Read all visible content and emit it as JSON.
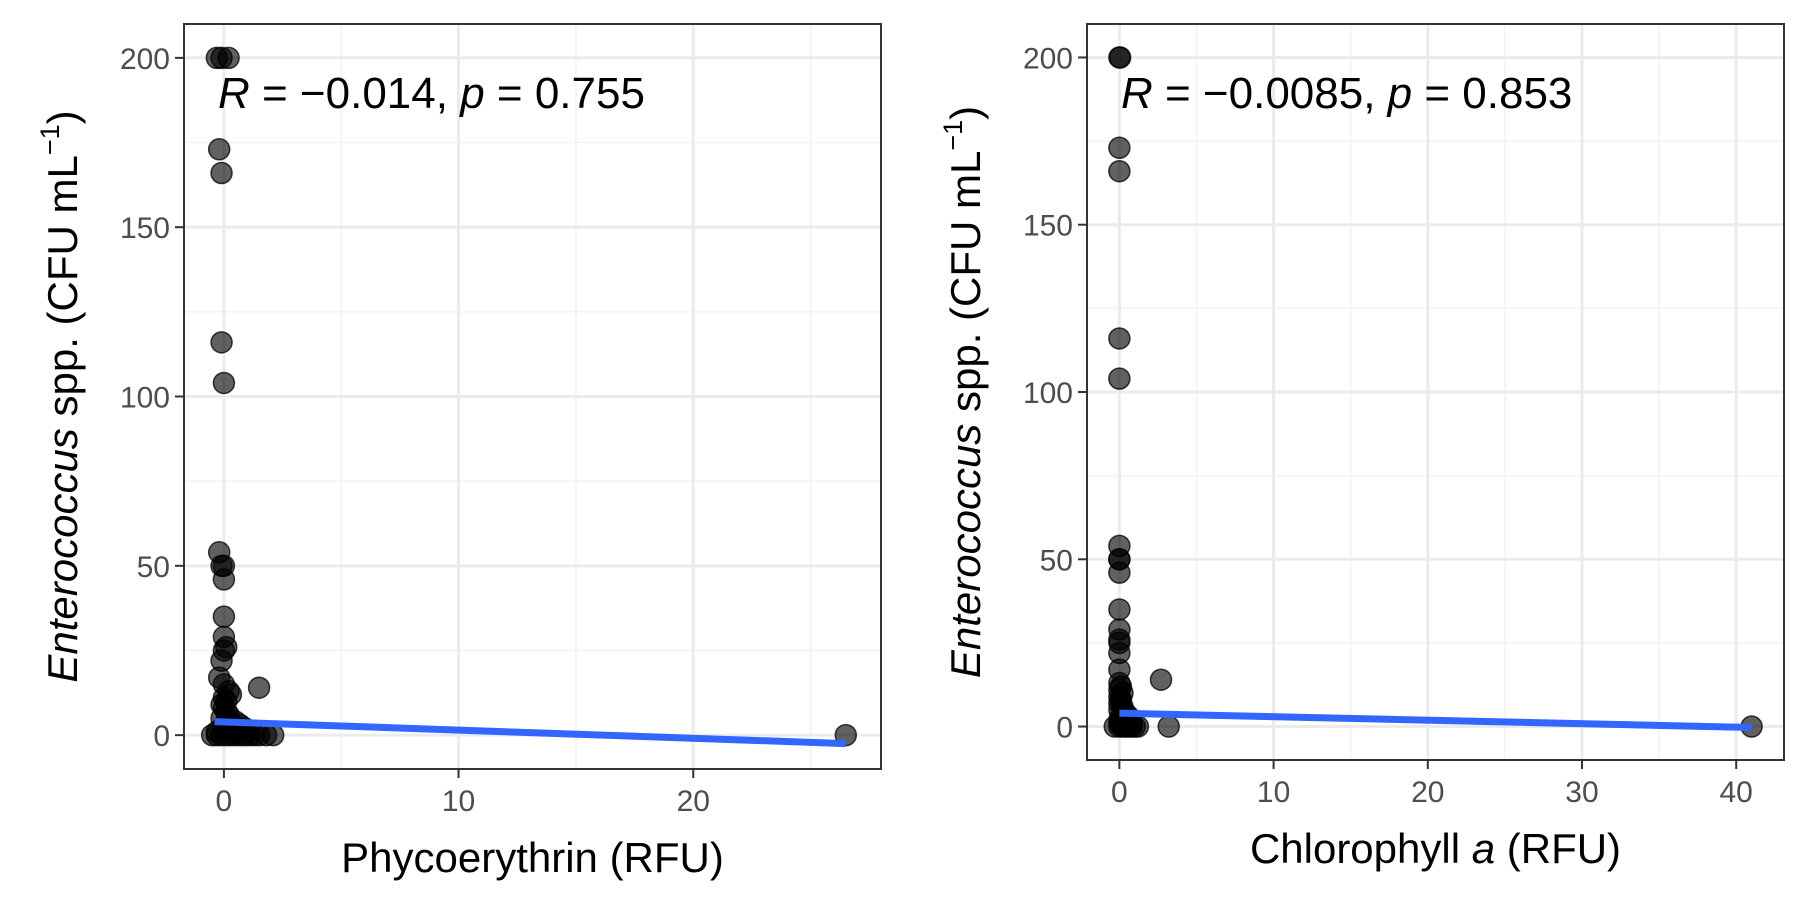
{
  "chart_data": [
    {
      "type": "scatter",
      "xlabel": "Phycoerythrin (RFU)",
      "ylabel": {
        "italic": "Enterococcus",
        "rest": " spp. (CFU mL",
        "sup": "−1",
        "close": ")"
      },
      "annotation": {
        "R_sym": "R",
        "R_val": " = −0.014, ",
        "p_sym": "p",
        "p_val": " = 0.755"
      },
      "xlim": [
        -1.7,
        28.0
      ],
      "ylim": [
        -10,
        210
      ],
      "xticks": [
        0,
        10,
        20
      ],
      "xtick_labels": [
        "0",
        "10",
        "20"
      ],
      "xminor": [
        5,
        15,
        25
      ],
      "yticks": [
        0,
        50,
        100,
        150,
        200
      ],
      "ytick_labels": [
        "0",
        "50",
        "100",
        "150",
        "200"
      ],
      "yminor": [
        25,
        75,
        125,
        175
      ],
      "points": [
        [
          -0.3,
          200
        ],
        [
          0.2,
          200
        ],
        [
          -0.1,
          200
        ],
        [
          -0.2,
          173
        ],
        [
          -0.1,
          166
        ],
        [
          -0.1,
          116
        ],
        [
          0.0,
          104
        ],
        [
          -0.2,
          54
        ],
        [
          -0.1,
          50
        ],
        [
          0.0,
          50
        ],
        [
          0.0,
          46
        ],
        [
          0.0,
          35
        ],
        [
          0.0,
          29
        ],
        [
          0.1,
          26
        ],
        [
          0.0,
          25
        ],
        [
          -0.1,
          22
        ],
        [
          -0.2,
          17
        ],
        [
          0.0,
          15
        ],
        [
          1.5,
          14
        ],
        [
          0.2,
          13
        ],
        [
          0.3,
          12
        ],
        [
          0.0,
          11
        ],
        [
          0.1,
          10
        ],
        [
          -0.1,
          9
        ],
        [
          0.0,
          8
        ],
        [
          0.1,
          7
        ],
        [
          0.2,
          6
        ],
        [
          -0.1,
          5
        ],
        [
          0.3,
          4
        ],
        [
          0.5,
          4
        ],
        [
          0.0,
          3
        ],
        [
          0.2,
          3
        ],
        [
          0.7,
          3
        ],
        [
          0.1,
          2
        ],
        [
          0.4,
          2
        ],
        [
          0.9,
          2
        ],
        [
          -0.3,
          1
        ],
        [
          0.3,
          1
        ],
        [
          0.6,
          1
        ],
        [
          1.0,
          1
        ],
        [
          -0.5,
          0
        ],
        [
          -0.3,
          0
        ],
        [
          -0.1,
          0
        ],
        [
          0.1,
          0
        ],
        [
          0.3,
          0
        ],
        [
          0.5,
          0
        ],
        [
          0.7,
          0
        ],
        [
          0.9,
          0
        ],
        [
          1.1,
          0
        ],
        [
          1.3,
          0
        ],
        [
          1.5,
          0
        ],
        [
          1.8,
          0
        ],
        [
          2.1,
          0
        ],
        [
          26.5,
          0
        ]
      ],
      "fit": {
        "x": [
          -0.4,
          26.5
        ],
        "y": [
          4.0,
          -2.5
        ]
      },
      "point_color": "#000000",
      "point_opacity": 0.62,
      "fit_color": "#3366ff"
    },
    {
      "type": "scatter",
      "xlabel": {
        "pre": "Chlorophyll ",
        "italic": "a",
        "post": " (RFU)"
      },
      "ylabel": {
        "italic": "Enterococcus",
        "rest": " spp. (CFU mL",
        "sup": "−1",
        "close": ")"
      },
      "annotation": {
        "R_sym": "R",
        "R_val": " = −0.0085, ",
        "p_sym": "p",
        "p_val": " = 0.853"
      },
      "xlim": [
        -2.1,
        43.1
      ],
      "ylim": [
        -10,
        210
      ],
      "xticks": [
        0,
        10,
        20,
        30,
        40
      ],
      "xtick_labels": [
        "0",
        "10",
        "20",
        "30",
        "40"
      ],
      "xminor": [
        5,
        15,
        25,
        35
      ],
      "yticks": [
        0,
        50,
        100,
        150,
        200
      ],
      "ytick_labels": [
        "0",
        "50",
        "100",
        "150",
        "200"
      ],
      "yminor": [
        25,
        75,
        125,
        175
      ],
      "points": [
        [
          0.0,
          200
        ],
        [
          0.05,
          200
        ],
        [
          0.0,
          173
        ],
        [
          0.0,
          166
        ],
        [
          0.0,
          116
        ],
        [
          0.0,
          104
        ],
        [
          0.0,
          54
        ],
        [
          0.0,
          50
        ],
        [
          0.0,
          50
        ],
        [
          0.0,
          46
        ],
        [
          0.0,
          35
        ],
        [
          0.0,
          29
        ],
        [
          0.0,
          26
        ],
        [
          0.0,
          25
        ],
        [
          0.0,
          22
        ],
        [
          0.0,
          17
        ],
        [
          2.7,
          14
        ],
        [
          0.0,
          13
        ],
        [
          0.1,
          12
        ],
        [
          0.0,
          11
        ],
        [
          0.2,
          10
        ],
        [
          0.0,
          9
        ],
        [
          0.1,
          8
        ],
        [
          0.0,
          7
        ],
        [
          0.2,
          6
        ],
        [
          0.0,
          5
        ],
        [
          0.4,
          4
        ],
        [
          0.1,
          3
        ],
        [
          0.6,
          3
        ],
        [
          0.0,
          2
        ],
        [
          0.3,
          2
        ],
        [
          0.8,
          1
        ],
        [
          0.0,
          1
        ],
        [
          -0.3,
          0
        ],
        [
          0.0,
          0
        ],
        [
          0.2,
          0
        ],
        [
          0.4,
          0
        ],
        [
          0.6,
          0
        ],
        [
          0.8,
          0
        ],
        [
          1.0,
          0
        ],
        [
          1.2,
          0
        ],
        [
          3.2,
          0
        ],
        [
          41.0,
          0
        ]
      ],
      "fit": {
        "x": [
          0.0,
          41.0
        ],
        "y": [
          4.0,
          -0.3
        ]
      },
      "point_color": "#000000",
      "point_opacity": 0.62,
      "fit_color": "#3366ff"
    }
  ]
}
